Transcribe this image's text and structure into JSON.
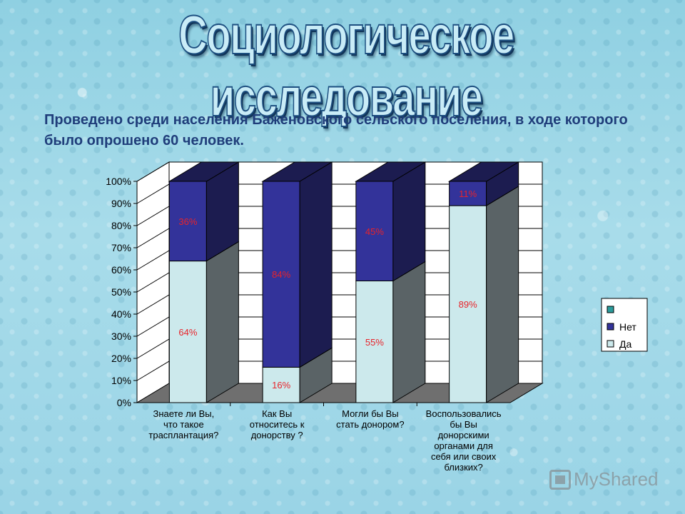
{
  "slide": {
    "title": "Социологическое исследование",
    "subtitle": "Проведено среди населения Баженовского сельского поселения, в ходе которого было опрошено 60 человек."
  },
  "watermark": {
    "text": "MyShared"
  },
  "chart_data": {
    "type": "bar",
    "stacked": true,
    "percent_stacked": true,
    "three_d": true,
    "categories": [
      [
        "Знаете ли Вы,",
        "что такое",
        "трасплантация?"
      ],
      [
        "Как Вы",
        "относитесь к",
        "донорству ?"
      ],
      [
        "Могли бы Вы",
        "стать донором?"
      ],
      [
        "Воспользовались",
        "бы Вы",
        "донорскими",
        "органами для",
        "себя или своих",
        "близких?"
      ]
    ],
    "series": [
      {
        "name": "Да",
        "values": [
          64,
          16,
          55,
          89
        ],
        "labels": [
          "64%",
          "16%",
          "55%",
          "89%"
        ],
        "color": "#cce9ec"
      },
      {
        "name": "Нет",
        "values": [
          36,
          84,
          45,
          11
        ],
        "labels": [
          "36%",
          "84%",
          "45%",
          "11%"
        ],
        "color": "#33339a"
      }
    ],
    "legend": [
      {
        "name": "",
        "color": "#2a9c9c"
      },
      {
        "name": "Нет",
        "color": "#33339a"
      },
      {
        "name": "Да",
        "color": "#cce9ec"
      }
    ],
    "legend_position": "right",
    "ylim": [
      0,
      100
    ],
    "yticks": [
      "0%",
      "10%",
      "20%",
      "30%",
      "40%",
      "50%",
      "60%",
      "70%",
      "80%",
      "90%",
      "100%"
    ],
    "grid": true,
    "label_color": "#e8232a",
    "colors": {
      "wall": "#ffffff",
      "floor": "#6f6f6f",
      "grid": "#000000",
      "side_da": "#5a6366",
      "side_net": "#1c1c50"
    }
  }
}
